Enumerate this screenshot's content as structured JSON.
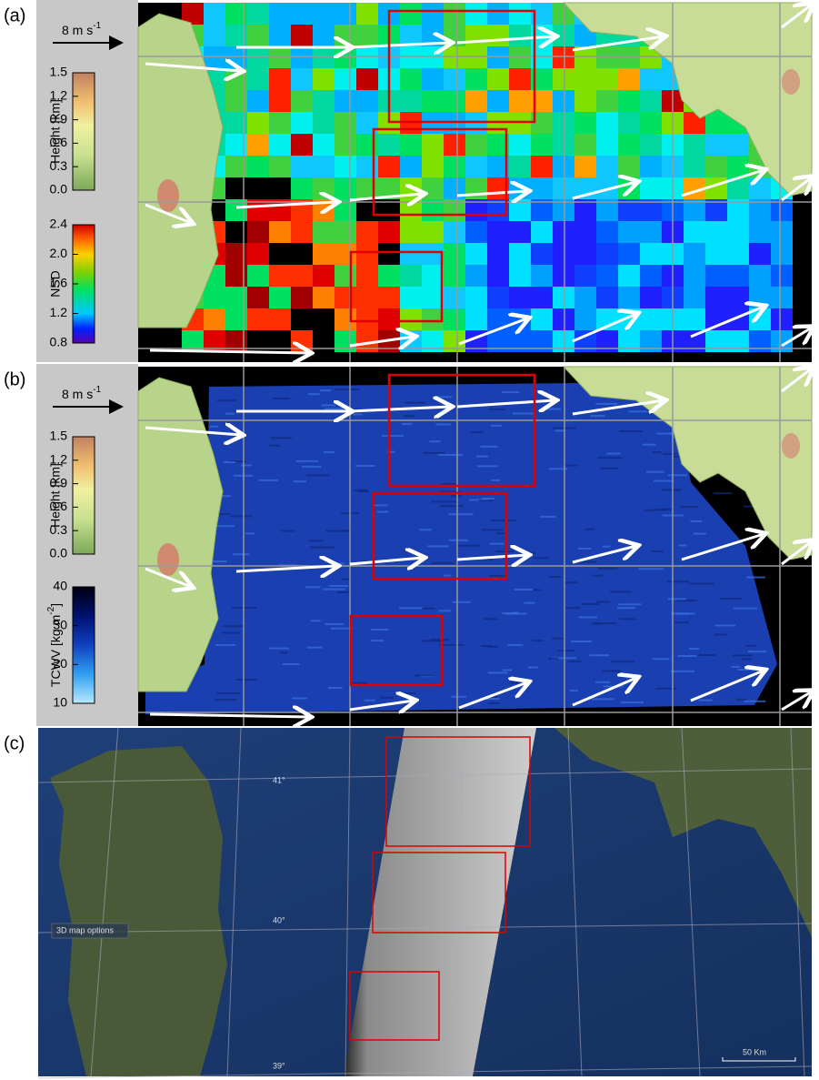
{
  "panels": [
    {
      "label": "(a)",
      "wind_scale": {
        "label": "8 m s",
        "exponent": "-1"
      },
      "height_bar": {
        "label": "Height  [km]",
        "lim": [
          0,
          1.5
        ],
        "ticks": [
          {
            "value": 0,
            "label": "0.0"
          },
          {
            "value": 0.3,
            "label": "0.3"
          },
          {
            "value": 0.6,
            "label": "0.6"
          },
          {
            "value": 0.9,
            "label": "0.9"
          },
          {
            "value": 1.2,
            "label": "1.2"
          },
          {
            "value": 1.5,
            "label": "1.5"
          }
        ]
      },
      "value_bar": {
        "label": "NSD",
        "lim": [
          0.8,
          2.4
        ],
        "ticks": [
          {
            "value": 0.8,
            "label": "0.8"
          },
          {
            "value": 1.2,
            "label": "1.2"
          },
          {
            "value": 1.6,
            "label": "1.6"
          },
          {
            "value": 2,
            "label": "2.0"
          },
          {
            "value": 2.4,
            "label": "2.4"
          }
        ]
      }
    },
    {
      "label": "(b)",
      "wind_scale": {
        "label": "8 m s",
        "exponent": "-1"
      },
      "height_bar": {
        "label": "Height  [km]",
        "lim": [
          0,
          1.5
        ],
        "ticks": [
          {
            "value": 0,
            "label": "0.0"
          },
          {
            "value": 0.3,
            "label": "0.3"
          },
          {
            "value": 0.6,
            "label": "0.6"
          },
          {
            "value": 0.9,
            "label": "0.9"
          },
          {
            "value": 1.2,
            "label": "1.2"
          },
          {
            "value": 1.5,
            "label": "1.5"
          }
        ]
      },
      "value_bar": {
        "label_parts": [
          "TCWV [kg m",
          "-2",
          "]"
        ],
        "lim": [
          10,
          40
        ],
        "ticks": [
          10,
          20,
          30,
          40
        ]
      }
    },
    {
      "label": "(c)",
      "latitudes": [
        "41°",
        "40°",
        "39°"
      ],
      "map_options": "3D map options",
      "scale": "50 Km"
    }
  ]
}
